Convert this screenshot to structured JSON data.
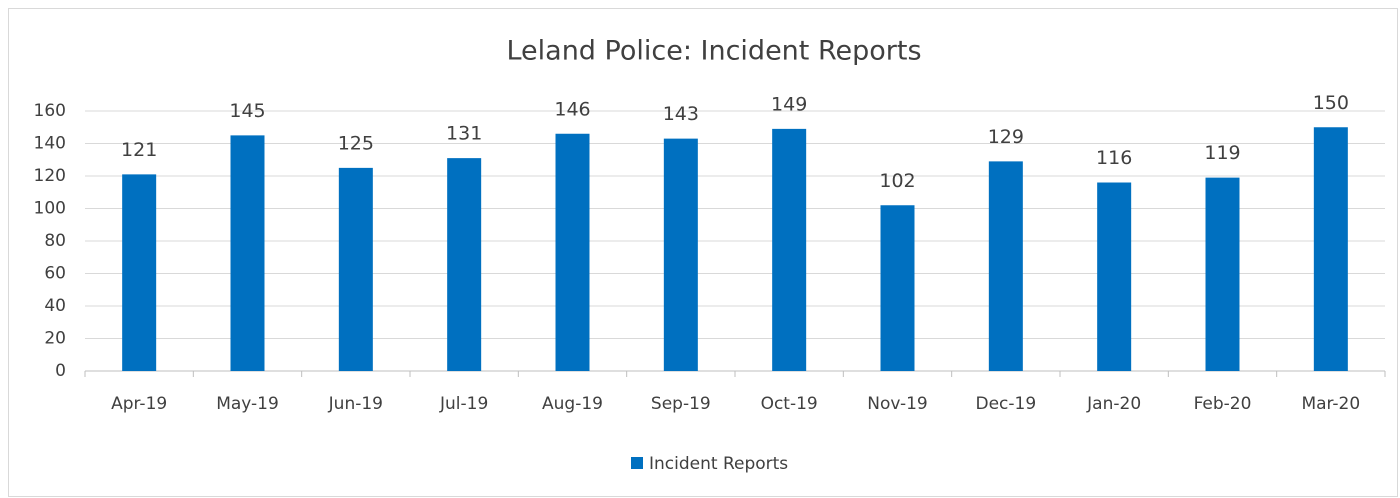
{
  "chart_data": {
    "type": "bar",
    "title": "Leland Police: Incident Reports",
    "categories": [
      "Apr-19",
      "May-19",
      "Jun-19",
      "Jul-19",
      "Aug-19",
      "Sep-19",
      "Oct-19",
      "Nov-19",
      "Dec-19",
      "Jan-20",
      "Feb-20",
      "Mar-20"
    ],
    "series": [
      {
        "name": "Incident Reports",
        "color": "#0070c0",
        "values": [
          121,
          145,
          125,
          131,
          146,
          143,
          149,
          102,
          129,
          116,
          119,
          150
        ]
      }
    ],
    "ylim": [
      0,
      160
    ],
    "yticks": [
      0,
      20,
      40,
      60,
      80,
      100,
      120,
      140,
      160
    ],
    "grid": true,
    "legend": "bottom"
  }
}
